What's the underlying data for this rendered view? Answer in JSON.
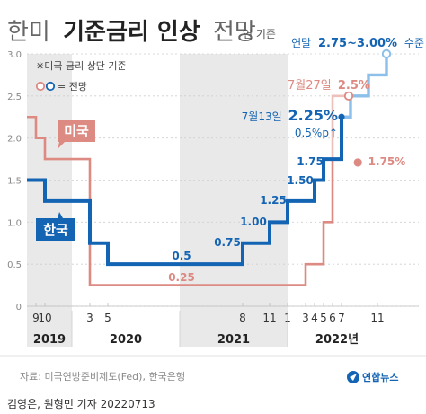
{
  "title": {
    "prefix": "한미",
    "main": "기준금리 인상",
    "suffix": "전망"
  },
  "subtitle_unit": "연 기준",
  "top_note": {
    "prefix": "연말",
    "value": "2.75~3.00%",
    "suffix": "수준"
  },
  "legend": {
    "upper_bound": "※미국 금리 상단 기준",
    "forecast": "= 전망"
  },
  "tag_us": "미국",
  "tag_kr": "한국",
  "jul27": {
    "date": "7월27일",
    "value": "2.5%"
  },
  "jul13": {
    "date": "7월13일",
    "value": "2.25%",
    "note": "0.5%p↑"
  },
  "us_end_label": "1.75%",
  "source": "자료: 미국연방준비제도(Fed), 한국은행",
  "brand": "연합뉴스",
  "byline": "김영은, 원형민 기자  20220713",
  "colors": {
    "korea": "#1464b4",
    "usa": "#dc8a82",
    "korea_forecast": "#8cc0ea",
    "usa_forecast": "#eec0bb",
    "shade": "#e9e9e9",
    "grid": "#cfcfcf",
    "text": "#222222",
    "muted": "#888888"
  },
  "chart_data": {
    "type": "line",
    "subtype": "step",
    "ylim": [
      0,
      3.0
    ],
    "yticks": [
      "0",
      "0.5",
      "1.0",
      "1.5",
      "2.0",
      "2.5",
      "3.0"
    ],
    "xtick_labels": [
      "9",
      "10",
      "3",
      "5",
      "8",
      "11",
      "1",
      "3",
      "4",
      "5",
      "6",
      "7",
      "11"
    ],
    "year_labels": [
      "2019",
      "2020",
      "2021",
      "2022년"
    ],
    "series": [
      {
        "name": "한국",
        "points": [
          {
            "x": "2019-08",
            "y": 1.5
          },
          {
            "x": "2019-09",
            "y": 1.5
          },
          {
            "x": "2019-10",
            "y": 1.25
          },
          {
            "x": "2020-03",
            "y": 0.75
          },
          {
            "x": "2020-05",
            "y": 0.5
          },
          {
            "x": "2021-08",
            "y": 0.75
          },
          {
            "x": "2021-11",
            "y": 1.0
          },
          {
            "x": "2022-01",
            "y": 1.25
          },
          {
            "x": "2022-04",
            "y": 1.5
          },
          {
            "x": "2022-05",
            "y": 1.75
          },
          {
            "x": "2022-07",
            "y": 2.25
          }
        ],
        "value_labels": [
          "0.5",
          "0.75",
          "1.00",
          "1.25",
          "1.50",
          "1.75",
          "2.25%"
        ]
      },
      {
        "name": "미국",
        "points": [
          {
            "x": "2019-08",
            "y": 2.25
          },
          {
            "x": "2019-09",
            "y": 2.0
          },
          {
            "x": "2019-10",
            "y": 1.75
          },
          {
            "x": "2020-03",
            "y": 0.25
          },
          {
            "x": "2022-03",
            "y": 0.5
          },
          {
            "x": "2022-05",
            "y": 1.0
          },
          {
            "x": "2022-06",
            "y": 1.75
          }
        ],
        "value_labels": [
          "0.25",
          "1.75%"
        ]
      },
      {
        "name": "한국 전망",
        "forecast": true,
        "points": [
          {
            "x": "2022-07",
            "y": 2.25
          },
          {
            "x": "2022-08",
            "y": 2.5
          },
          {
            "x": "2022-10",
            "y": 2.75
          },
          {
            "x": "2022-12",
            "y": 3.0
          }
        ]
      },
      {
        "name": "미국 전망",
        "forecast": true,
        "points": [
          {
            "x": "2022-06",
            "y": 1.75
          },
          {
            "x": "2022-07",
            "y": 2.5
          }
        ],
        "value_labels": [
          "2.5%"
        ]
      }
    ],
    "shaded_years": [
      "2019",
      "2021"
    ],
    "grid": true,
    "legend_position": "top-left"
  }
}
